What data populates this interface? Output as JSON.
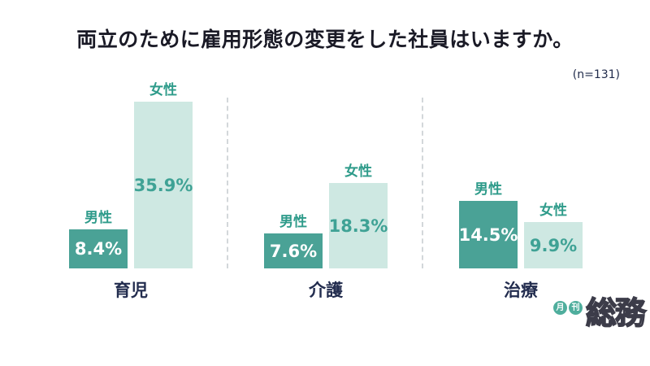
{
  "title": "両立のために雇用形態の変更をした社員はいますか。",
  "sample_size": "(n=131)",
  "colors": {
    "title_text": "#1a1a26",
    "annotation_text": "#1f2a4a",
    "male_bar": "#4aa296",
    "female_bar": "#cee8e2",
    "male_value_text": "#ffffff",
    "female_value_text": "#3fa295",
    "series_label": "#2e9b8a",
    "category_label": "#232d4f",
    "divider": "#d3d7da",
    "logo_badge": "#4fae9d"
  },
  "logo": {
    "badge1": "月",
    "badge2": "刊",
    "wordmark": "総務"
  },
  "chart_data": {
    "type": "bar",
    "title": "両立のために雇用形態の変更をした社員はいますか。",
    "subtitle": "(n=131)",
    "categories": [
      "育児",
      "介護",
      "治療"
    ],
    "series": [
      {
        "name": "男性",
        "values": [
          8.4,
          7.6,
          14.5
        ],
        "color": "#4aa296"
      },
      {
        "name": "女性",
        "values": [
          35.9,
          18.3,
          9.9
        ],
        "color": "#cee8e2"
      }
    ],
    "unit": "%",
    "ylim": [
      0,
      36
    ],
    "grid": false,
    "legend_position": "labels-above-bars",
    "groups": [
      {
        "category": "育児",
        "bars": [
          {
            "label": "男性",
            "value": 8.4,
            "display": "8.4%"
          },
          {
            "label": "女性",
            "value": 35.9,
            "display": "35.9%"
          }
        ]
      },
      {
        "category": "介護",
        "bars": [
          {
            "label": "男性",
            "value": 7.6,
            "display": "7.6%"
          },
          {
            "label": "女性",
            "value": 18.3,
            "display": "18.3%"
          }
        ]
      },
      {
        "category": "治療",
        "bars": [
          {
            "label": "男性",
            "value": 14.5,
            "display": "14.5%"
          },
          {
            "label": "女性",
            "value": 9.9,
            "display": "9.9%"
          }
        ]
      }
    ]
  }
}
